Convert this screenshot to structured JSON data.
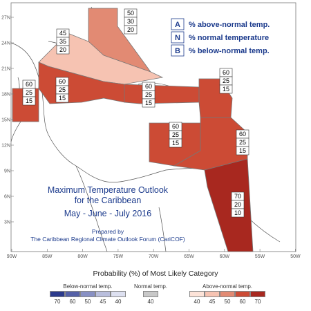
{
  "map_labels": {
    "lat_ticks": [
      "27N",
      "24N",
      "21N",
      "18N",
      "15N",
      "12N",
      "9N",
      "6N",
      "3N"
    ],
    "lon_ticks": [
      "90W",
      "85W",
      "80W",
      "75W",
      "70W",
      "65W",
      "60W",
      "55W",
      "50W"
    ]
  },
  "regions": [
    {
      "name": "northern-bahamas",
      "A": "50",
      "N": "30",
      "B": "20",
      "color": "#e28a73"
    },
    {
      "name": "cuba-southern-bahamas",
      "A": "45",
      "N": "35",
      "B": "20",
      "color": "#f6c3b2"
    },
    {
      "name": "belize",
      "A": "60",
      "N": "25",
      "B": "15",
      "color": "#cc4b35"
    },
    {
      "name": "cayman-jamaica",
      "A": "60",
      "N": "25",
      "B": "15",
      "color": "#cc4b35"
    },
    {
      "name": "hispaniola-puerto-rico",
      "A": "60",
      "N": "25",
      "B": "15",
      "color": "#cc4b35"
    },
    {
      "name": "leeward-islands",
      "A": "60",
      "N": "25",
      "B": "15",
      "color": "#cc4b35"
    },
    {
      "name": "abc-islands",
      "A": "60",
      "N": "25",
      "B": "15",
      "color": "#cc4b35"
    },
    {
      "name": "windward-islands",
      "A": "60",
      "N": "25",
      "B": "15",
      "color": "#cc4b35"
    },
    {
      "name": "guianas",
      "A": "70",
      "N": "20",
      "B": "10",
      "color": "#a8281f"
    }
  ],
  "legend": {
    "items": [
      {
        "letter": "A",
        "text": "% above-normal temp."
      },
      {
        "letter": "N",
        "text": "% normal temperature"
      },
      {
        "letter": "B",
        "text": "% below-normal temp."
      }
    ]
  },
  "title": {
    "line1": "Maximum Temperature Outlook",
    "line2": "for the Caribbean",
    "line3": "May - June - July 2016",
    "prepared": "Prepared by",
    "forum": "The Caribbean Regional Climate Outlook Forum (CariCOF)"
  },
  "colorbar": {
    "title": "Probability (%) of Most Likely Category",
    "below": {
      "label": "Below-normal temp.",
      "values": [
        "70",
        "60",
        "50",
        "45",
        "40"
      ],
      "colors": [
        "#2b3a8c",
        "#5561a8",
        "#8890c4",
        "#b9bedd",
        "#dde0f0"
      ]
    },
    "normal": {
      "label": "Normal temp.",
      "values": [
        "40"
      ],
      "colors": [
        "#c8c8c8"
      ]
    },
    "above": {
      "label": "Above-normal temp.",
      "values": [
        "40",
        "45",
        "50",
        "60",
        "70"
      ],
      "colors": [
        "#fde3d8",
        "#f6c3b2",
        "#e28a73",
        "#cc4b35",
        "#a8281f"
      ]
    }
  }
}
